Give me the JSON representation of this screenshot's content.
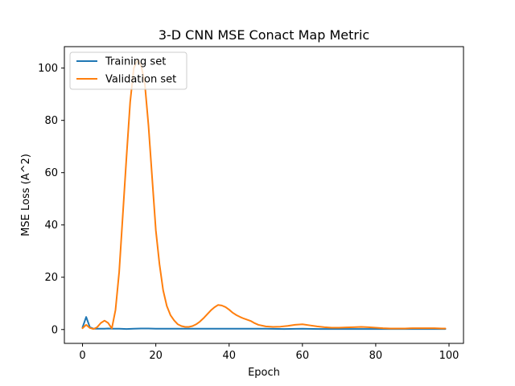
{
  "chart_data": {
    "type": "line",
    "title": "3-D CNN MSE Conact Map Metric",
    "xlabel": "Epoch",
    "ylabel": "MSE Loss (A^2)",
    "xlim": [
      -4.95,
      103.95
    ],
    "ylim": [
      -5.3,
      108.2
    ],
    "xticks": [
      0,
      20,
      40,
      60,
      80,
      100
    ],
    "yticks": [
      0,
      20,
      40,
      60,
      80,
      100
    ],
    "xtick_labels": [
      "0",
      "20",
      "40",
      "60",
      "80",
      "100"
    ],
    "ytick_labels": [
      "0",
      "20",
      "40",
      "60",
      "80",
      "100"
    ],
    "grid": false,
    "legend_position": "top-left",
    "series": [
      {
        "name": "Training set",
        "color": "#1f77b4",
        "x": [
          0,
          1,
          2,
          3,
          4,
          5,
          6,
          7,
          8,
          9,
          10,
          12,
          14,
          16,
          18,
          20,
          25,
          30,
          35,
          40,
          45,
          50,
          55,
          60,
          65,
          70,
          75,
          80,
          85,
          90,
          95,
          99
        ],
        "values": [
          0.8,
          4.8,
          0.9,
          0.3,
          0.3,
          0.3,
          0.3,
          0.4,
          0.3,
          0.3,
          0.3,
          0.2,
          0.3,
          0.4,
          0.4,
          0.3,
          0.3,
          0.3,
          0.3,
          0.3,
          0.3,
          0.3,
          0.2,
          0.3,
          0.2,
          0.2,
          0.2,
          0.2,
          0.2,
          0.2,
          0.2,
          0.2
        ]
      },
      {
        "name": "Validation set",
        "color": "#ff7f0e",
        "x": [
          0,
          1,
          2,
          3,
          4,
          5,
          6,
          7,
          8,
          9,
          10,
          11,
          12,
          13,
          14,
          15,
          16,
          17,
          18,
          19,
          20,
          21,
          22,
          23,
          24,
          25,
          26,
          27,
          28,
          29,
          30,
          31,
          32,
          33,
          34,
          35,
          36,
          37,
          38,
          39,
          40,
          41,
          42,
          43,
          44,
          45,
          46,
          47,
          48,
          50,
          52,
          54,
          56,
          58,
          60,
          62,
          64,
          66,
          68,
          70,
          72,
          74,
          76,
          78,
          80,
          82,
          84,
          86,
          88,
          90,
          92,
          94,
          96,
          98,
          99
        ],
        "values": [
          0.5,
          1.8,
          0.6,
          0.2,
          0.9,
          2.5,
          3.4,
          2.5,
          0.4,
          7.5,
          22.0,
          44.0,
          66.0,
          87.0,
          100.0,
          103.0,
          101.0,
          94.0,
          78.0,
          58.0,
          38.0,
          25.0,
          15.0,
          9.0,
          5.5,
          3.5,
          2.0,
          1.3,
          1.0,
          1.0,
          1.3,
          2.0,
          3.0,
          4.3,
          5.8,
          7.3,
          8.5,
          9.4,
          9.2,
          8.6,
          7.6,
          6.4,
          5.5,
          4.8,
          4.2,
          3.7,
          3.2,
          2.4,
          1.8,
          1.2,
          1.0,
          1.1,
          1.4,
          1.8,
          2.0,
          1.6,
          1.2,
          0.9,
          0.7,
          0.7,
          0.8,
          0.9,
          1.0,
          0.9,
          0.7,
          0.5,
          0.4,
          0.4,
          0.4,
          0.5,
          0.5,
          0.5,
          0.5,
          0.4,
          0.4
        ]
      }
    ]
  }
}
